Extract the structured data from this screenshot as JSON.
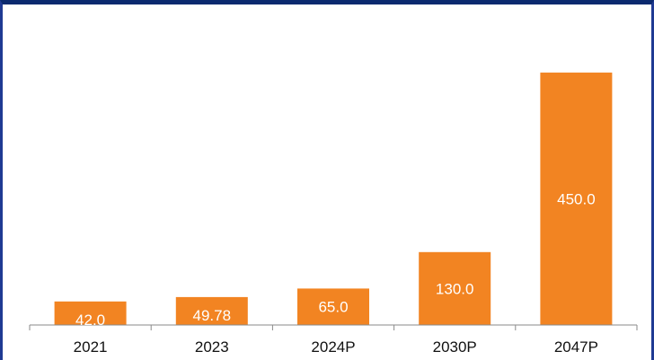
{
  "chart_data": {
    "type": "bar",
    "title": "",
    "xlabel": "",
    "ylabel": "",
    "categories": [
      "2021",
      "2023",
      "2024P",
      "2030P",
      "2047P"
    ],
    "values": [
      42.0,
      49.78,
      65.0,
      130.0,
      450.0
    ],
    "value_labels": [
      "42.0",
      "49.78",
      "65.0",
      "130.0",
      "450.0"
    ],
    "ylim": [
      0,
      480
    ],
    "grid": false,
    "legend": "none",
    "bar_color": "#f28422",
    "label_color": "#ffffff",
    "frame_color": "#1f3a93"
  }
}
